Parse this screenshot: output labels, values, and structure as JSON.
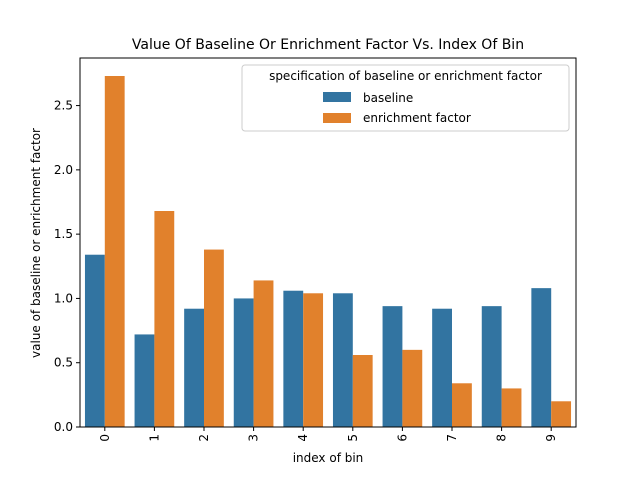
{
  "chart_data": {
    "type": "bar",
    "title": "Value Of Baseline Or Enrichment Factor Vs. Index Of Bin",
    "xlabel": "index of bin",
    "ylabel": "value of baseline or enrichment factor",
    "categories": [
      "0",
      "1",
      "2",
      "3",
      "4",
      "5",
      "6",
      "7",
      "8",
      "9"
    ],
    "series": [
      {
        "name": "baseline",
        "color": "#3274a1",
        "values": [
          1.34,
          0.72,
          0.92,
          1.0,
          1.06,
          1.04,
          0.94,
          0.92,
          0.94,
          1.08
        ]
      },
      {
        "name": "enrichment factor",
        "color": "#e1812c",
        "values": [
          2.73,
          1.68,
          1.38,
          1.14,
          1.04,
          0.56,
          0.6,
          0.34,
          0.3,
          0.2
        ]
      }
    ],
    "yticks": [
      "0.0",
      "0.5",
      "1.0",
      "1.5",
      "2.0",
      "2.5"
    ],
    "ylim": [
      0,
      2.87
    ],
    "legend": {
      "title": "specification of baseline or enrichment factor",
      "placement": "top-right"
    },
    "grid": false
  }
}
